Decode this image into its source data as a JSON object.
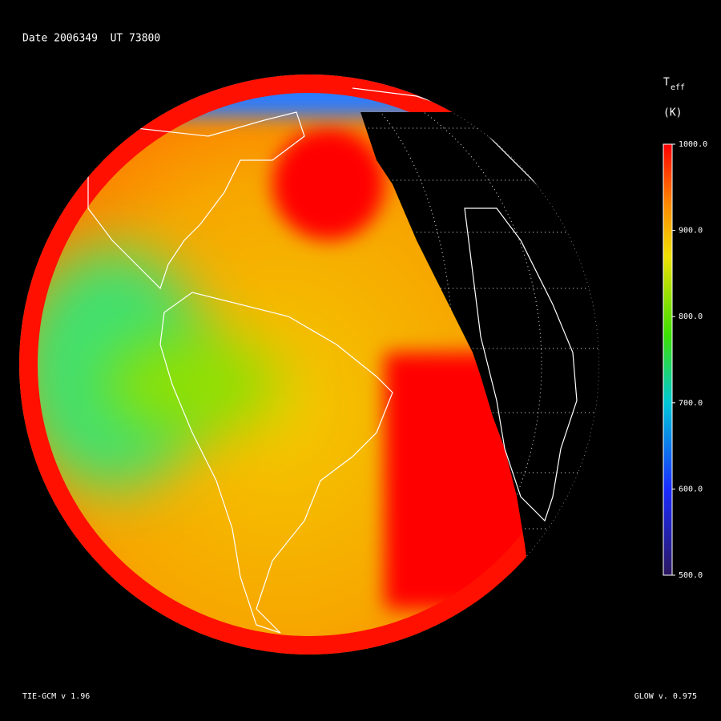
{
  "header": {
    "date_label": "Date 2006349  UT 73800"
  },
  "colorbar": {
    "title": "T",
    "title_subscript": "eff",
    "unit": "(K)",
    "lim": [
      500,
      1000
    ],
    "ticks": [
      {
        "value": 1000,
        "label": "1000.0"
      },
      {
        "value": 900,
        "label": "900.0"
      },
      {
        "value": 800,
        "label": "800.0"
      },
      {
        "value": 700,
        "label": "700.0"
      },
      {
        "value": 600,
        "label": "600.0"
      },
      {
        "value": 500,
        "label": "500.0"
      }
    ],
    "colors": [
      {
        "value": 500,
        "color": "#2b1760"
      },
      {
        "value": 600,
        "color": "#1a2cff"
      },
      {
        "value": 700,
        "color": "#00c8d8"
      },
      {
        "value": 780,
        "color": "#3ee000"
      },
      {
        "value": 870,
        "color": "#f0e000"
      },
      {
        "value": 930,
        "color": "#ff8a00"
      },
      {
        "value": 1000,
        "color": "#ff0000"
      }
    ]
  },
  "footer": {
    "left": "TIE-GCM v 1.96",
    "right": "GLOW v. 0.975"
  }
}
